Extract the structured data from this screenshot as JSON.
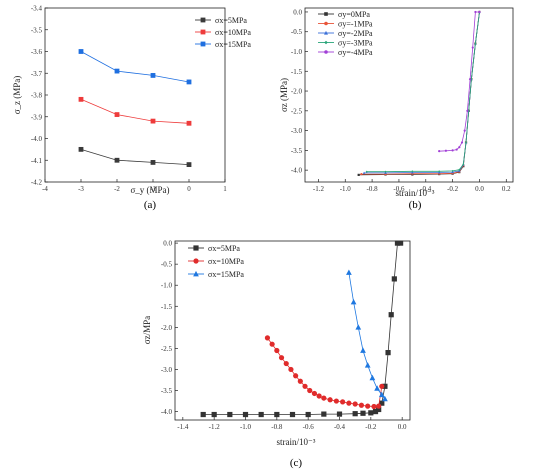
{
  "chart_data": [
    {
      "type": "line",
      "panel_label": "(a)",
      "xlabel": "σ_y (MPa)",
      "ylabel": "σ_z (MPa)",
      "xlim": [
        -4,
        1
      ],
      "ylim": [
        -4.2,
        -3.4
      ],
      "xticks": [
        "-4",
        "-3",
        "-2",
        "-1",
        "0",
        "1"
      ],
      "yticks": [
        "-4.2",
        "-4.1",
        "-4.0",
        "-3.9",
        "-3.8",
        "-3.7",
        "-3.6",
        "-3.5",
        "-3.4"
      ],
      "legend_position": "top-right",
      "series": [
        {
          "name": "σx=5MPa",
          "color": "#3a3a3a",
          "marker": "square",
          "x": [
            -3,
            -2,
            -1,
            0
          ],
          "y": [
            -4.05,
            -4.1,
            -4.11,
            -4.12
          ]
        },
        {
          "name": "σx=10MPa",
          "color": "#ee3b3b",
          "marker": "square",
          "x": [
            -3,
            -2,
            -1,
            0
          ],
          "y": [
            -3.82,
            -3.89,
            -3.92,
            -3.93
          ]
        },
        {
          "name": "σx=15MPa",
          "color": "#1f6fe0",
          "marker": "square",
          "x": [
            -3,
            -2,
            -1,
            0
          ],
          "y": [
            -3.6,
            -3.69,
            -3.71,
            -3.74
          ]
        }
      ]
    },
    {
      "type": "line",
      "panel_label": "(b)",
      "xlabel": "strain/10⁻³",
      "ylabel": "σz (MPa)",
      "xlim": [
        -1.3,
        0.25
      ],
      "ylim": [
        -4.3,
        0.1
      ],
      "xticks": [
        "-1.2",
        "-1.0",
        "-0.8",
        "-0.6",
        "-0.4",
        "-0.2",
        "0.0",
        "0.2"
      ],
      "yticks": [
        "-4.0",
        "-3.5",
        "-3.0",
        "-2.5",
        "-2.0",
        "-1.5",
        "-1.0",
        "-0.5",
        "0.0"
      ],
      "legend_position": "top-left",
      "series": [
        {
          "name": "σy=0MPa",
          "color": "#333333",
          "marker": "square",
          "x": [
            -0.9,
            -0.7,
            -0.5,
            -0.3,
            -0.2,
            -0.15,
            -0.12,
            -0.1,
            -0.08,
            -0.06,
            -0.03,
            0
          ],
          "y": [
            -4.12,
            -4.11,
            -4.11,
            -4.1,
            -4.09,
            -4.05,
            -3.9,
            -3.3,
            -2.5,
            -1.7,
            -0.8,
            0
          ]
        },
        {
          "name": "σy=-1MPa",
          "color": "#e8553a",
          "marker": "circle",
          "x": [
            -0.88,
            -0.7,
            -0.5,
            -0.3,
            -0.2,
            -0.15,
            -0.12,
            -0.1,
            -0.08,
            -0.06,
            -0.03,
            0
          ],
          "y": [
            -4.1,
            -4.1,
            -4.09,
            -4.09,
            -4.08,
            -4.04,
            -3.88,
            -3.3,
            -2.5,
            -1.7,
            -0.8,
            0
          ]
        },
        {
          "name": "σy=-2MPa",
          "color": "#3a6fd8",
          "marker": "triangle",
          "x": [
            -0.86,
            -0.7,
            -0.5,
            -0.3,
            -0.2,
            -0.15,
            -0.12,
            -0.1,
            -0.08,
            -0.06,
            -0.03,
            0
          ],
          "y": [
            -4.07,
            -4.07,
            -4.06,
            -4.06,
            -4.05,
            -4.02,
            -3.86,
            -3.3,
            -2.5,
            -1.7,
            -0.8,
            0
          ]
        },
        {
          "name": "σy=-3MPa",
          "color": "#2aa57a",
          "marker": "diamond",
          "x": [
            -0.84,
            -0.7,
            -0.5,
            -0.3,
            -0.2,
            -0.15,
            -0.12,
            -0.1,
            -0.08,
            -0.06,
            -0.03,
            0
          ],
          "y": [
            -4.04,
            -4.04,
            -4.03,
            -4.03,
            -4.02,
            -3.99,
            -3.85,
            -3.3,
            -2.5,
            -1.7,
            -0.8,
            0
          ]
        },
        {
          "name": "σy=-4MPa",
          "color": "#a13fd6",
          "marker": "circle",
          "x": [
            -0.3,
            -0.25,
            -0.2,
            -0.17,
            -0.15,
            -0.13,
            -0.11,
            -0.09,
            -0.07,
            -0.05,
            -0.03,
            0
          ],
          "y": [
            -3.52,
            -3.51,
            -3.5,
            -3.48,
            -3.42,
            -3.3,
            -3.0,
            -2.5,
            -1.7,
            -0.9,
            0,
            0
          ]
        }
      ]
    },
    {
      "type": "line",
      "panel_label": "(c)",
      "xlabel": "strain/10⁻³",
      "ylabel": "σz/MPa",
      "xlim": [
        -1.45,
        0.05
      ],
      "ylim": [
        -4.2,
        0.05
      ],
      "xticks": [
        "-1.4",
        "-1.2",
        "-1.0",
        "-0.8",
        "-0.6",
        "-0.4",
        "-0.2",
        "0.0"
      ],
      "yticks": [
        "-4.0",
        "-3.5",
        "-3.0",
        "-2.5",
        "-2.0",
        "-1.5",
        "-1.0",
        "-0.5",
        "0.0"
      ],
      "legend_position": "top-left",
      "series": [
        {
          "name": "σx=5MPa",
          "color": "#333333",
          "marker": "square",
          "x": [
            -1.27,
            -1.2,
            -1.1,
            -1.0,
            -0.9,
            -0.8,
            -0.7,
            -0.6,
            -0.5,
            -0.4,
            -0.3,
            -0.25,
            -0.2,
            -0.17,
            -0.15,
            -0.13,
            -0.11,
            -0.09,
            -0.07,
            -0.05,
            -0.03,
            -0.01
          ],
          "y": [
            -4.07,
            -4.07,
            -4.07,
            -4.07,
            -4.07,
            -4.07,
            -4.07,
            -4.07,
            -4.06,
            -4.06,
            -4.05,
            -4.04,
            -4.03,
            -4.0,
            -3.95,
            -3.8,
            -3.4,
            -2.6,
            -1.7,
            -0.85,
            0.0,
            0.0
          ]
        },
        {
          "name": "σx=10MPa",
          "color": "#e02b2b",
          "marker": "circle",
          "x": [
            -0.86,
            -0.83,
            -0.8,
            -0.77,
            -0.74,
            -0.71,
            -0.68,
            -0.65,
            -0.62,
            -0.59,
            -0.56,
            -0.53,
            -0.5,
            -0.46,
            -0.42,
            -0.38,
            -0.34,
            -0.3,
            -0.26,
            -0.22,
            -0.18,
            -0.15,
            -0.13
          ],
          "y": [
            -2.25,
            -2.4,
            -2.55,
            -2.72,
            -2.86,
            -3.0,
            -3.15,
            -3.28,
            -3.4,
            -3.5,
            -3.57,
            -3.63,
            -3.68,
            -3.72,
            -3.75,
            -3.77,
            -3.8,
            -3.82,
            -3.85,
            -3.87,
            -3.88,
            -3.87,
            -3.4
          ]
        },
        {
          "name": "σx=15MPa",
          "color": "#1f78e0",
          "marker": "triangle",
          "x": [
            -0.34,
            -0.31,
            -0.28,
            -0.25,
            -0.22,
            -0.19,
            -0.16,
            -0.13,
            -0.11
          ],
          "y": [
            -0.7,
            -1.4,
            -2.0,
            -2.55,
            -2.9,
            -3.2,
            -3.45,
            -3.6,
            -3.7
          ]
        }
      ]
    }
  ]
}
